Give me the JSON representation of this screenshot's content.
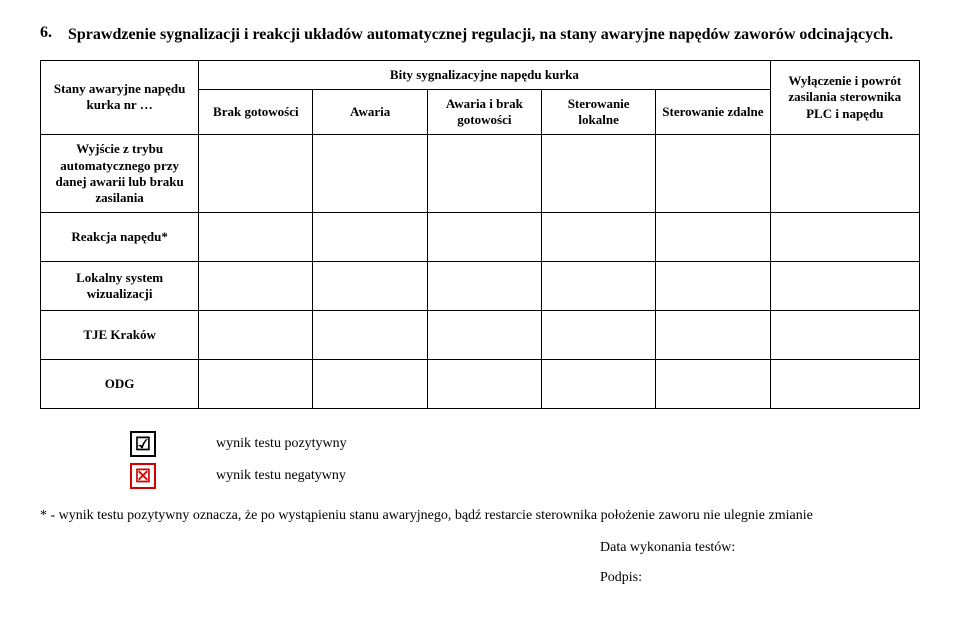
{
  "heading": {
    "number": "6.",
    "text": "Sprawdzenie sygnalizacji i reakcji układów automatycznej regulacji, na stany awaryjne napędów zaworów odcinających."
  },
  "table": {
    "stub_header": "Stany awaryjne napędu kurka nr …",
    "group_header": "Bity sygnalizacyjne napędu kurka",
    "cols": {
      "a": "Brak gotowości",
      "b": "Awaria",
      "c": "Awaria i brak gotowości",
      "d": "Sterowanie lokalne",
      "e": "Sterowanie zdalne"
    },
    "right_header": "Wyłączenie i powrót zasilania sterownika PLC i napędu",
    "rows": {
      "r1": "Wyjście z trybu automatycznego przy danej awarii lub braku zasilania",
      "r2": "Reakcja napędu*",
      "r3": "Lokalny system wizualizacji",
      "r4": "TJE Kraków",
      "r5": "ODG"
    }
  },
  "legend": {
    "pos_symbol": "☑",
    "pos_text": "wynik testu pozytywny",
    "neg_symbol": "☒",
    "neg_text": "wynik testu negatywny"
  },
  "footnote": "* - wynik testu pozytywny oznacza, że po wystąpieniu stanu awaryjnego, bądź restarcie sterownika położenie zaworu nie ulegnie zmianie",
  "signatures": {
    "date": "Data wykonania testów:",
    "sign": "Podpis:"
  }
}
